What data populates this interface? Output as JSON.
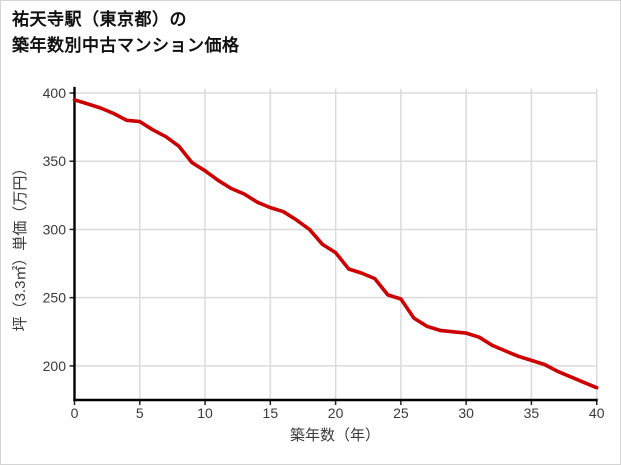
{
  "page": {
    "title_line1": "祐天寺駅（東京都）の",
    "title_line2": "築年数別中古マンション価格"
  },
  "chart_data": {
    "type": "line",
    "title": "祐天寺駅（東京都）の築年数別中古マンション価格",
    "xlabel": "築年数（年）",
    "ylabel": "坪（3.3㎡）単価（万円）",
    "x": [
      0,
      1,
      2,
      3,
      4,
      5,
      6,
      7,
      8,
      9,
      10,
      11,
      12,
      13,
      14,
      15,
      16,
      17,
      18,
      19,
      20,
      21,
      22,
      23,
      24,
      25,
      26,
      27,
      28,
      29,
      30,
      31,
      32,
      33,
      34,
      35,
      36,
      37,
      38,
      39,
      40
    ],
    "y": [
      395,
      392,
      389,
      385,
      380,
      379,
      373,
      368,
      361,
      349,
      343,
      336,
      330,
      326,
      320,
      316,
      313,
      307,
      300,
      289,
      283,
      271,
      268,
      264,
      252,
      249,
      235,
      229,
      226,
      225,
      224,
      221,
      215,
      211,
      207,
      204,
      201,
      196,
      192,
      188,
      184
    ],
    "series_name": "坪単価",
    "xticks": [
      0,
      5,
      10,
      15,
      20,
      25,
      30,
      35,
      40
    ],
    "yticks": [
      200,
      250,
      300,
      350,
      400
    ],
    "xlim": [
      0,
      40
    ],
    "ylim": [
      175,
      403
    ],
    "grid": true,
    "legend": null,
    "colors": {
      "line": "#CC0000",
      "grid": "#DBDBDB",
      "axis": "#000000",
      "tick_label": "#3a3a3a"
    }
  }
}
